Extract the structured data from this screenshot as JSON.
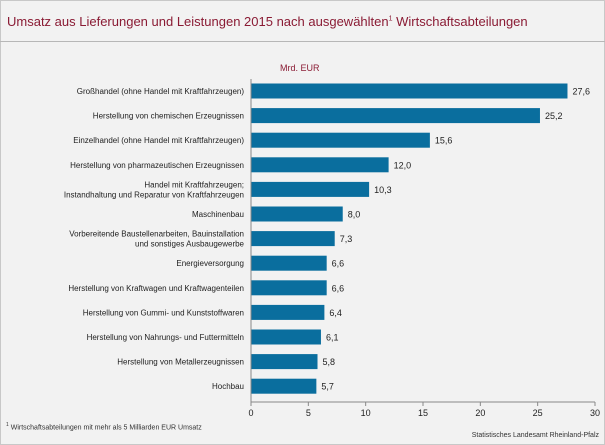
{
  "header": {
    "title": "Umsatz aus Lieferungen und Leistungen 2015 nach ausgewählten",
    "title_sup": "1",
    "title_end": " Wirtschaftsabteilungen"
  },
  "chart_data": {
    "type": "bar",
    "orientation": "horizontal",
    "unit_label": "Mrd. EUR",
    "categories": [
      [
        "Großhandel (ohne Handel mit Kraftfahrzeugen)"
      ],
      [
        "Herstellung von chemischen Erzeugnissen"
      ],
      [
        "Einzelhandel (ohne Handel mit Kraftfahrzeugen)"
      ],
      [
        "Herstellung von pharmazeutischen Erzeugnissen"
      ],
      [
        "Handel mit Kraftfahrzeugen;",
        "Instandhaltung und Reparatur von Kraftfahrzeugen"
      ],
      [
        "Maschinenbau"
      ],
      [
        "Vorbereitende Baustellenarbeiten, Bauinstallation",
        "und sonstiges Ausbaugewerbe"
      ],
      [
        "Energieversorgung"
      ],
      [
        "Herstellung von Kraftwagen und Kraftwagenteilen"
      ],
      [
        "Herstellung von Gummi- und Kunststoffwaren"
      ],
      [
        "Herstellung von Nahrungs- und Futtermitteln"
      ],
      [
        "Herstellung von Metallerzeugnissen"
      ],
      [
        "Hochbau"
      ]
    ],
    "values": [
      27.6,
      25.2,
      15.6,
      12.0,
      10.3,
      8.0,
      7.3,
      6.6,
      6.6,
      6.4,
      6.1,
      5.8,
      5.7
    ],
    "value_labels": [
      "27,6",
      "25,2",
      "15,6",
      "12,0",
      "10,3",
      "8,0",
      "7,3",
      "6,6",
      "6,6",
      "6,4",
      "6,1",
      "5,8",
      "5,7"
    ],
    "xlim": [
      0,
      30
    ],
    "xticks": [
      0,
      5,
      10,
      15,
      20,
      25,
      30
    ],
    "bar_color": "#0a6e9e",
    "grid": false
  },
  "footer": {
    "footnote_sup": "1",
    "footnote": " Wirtschaftsabteilungen mit mehr als 5 Milliarden EUR Umsatz",
    "source": "Statistisches Landesamt Rheinland-Pfalz"
  }
}
